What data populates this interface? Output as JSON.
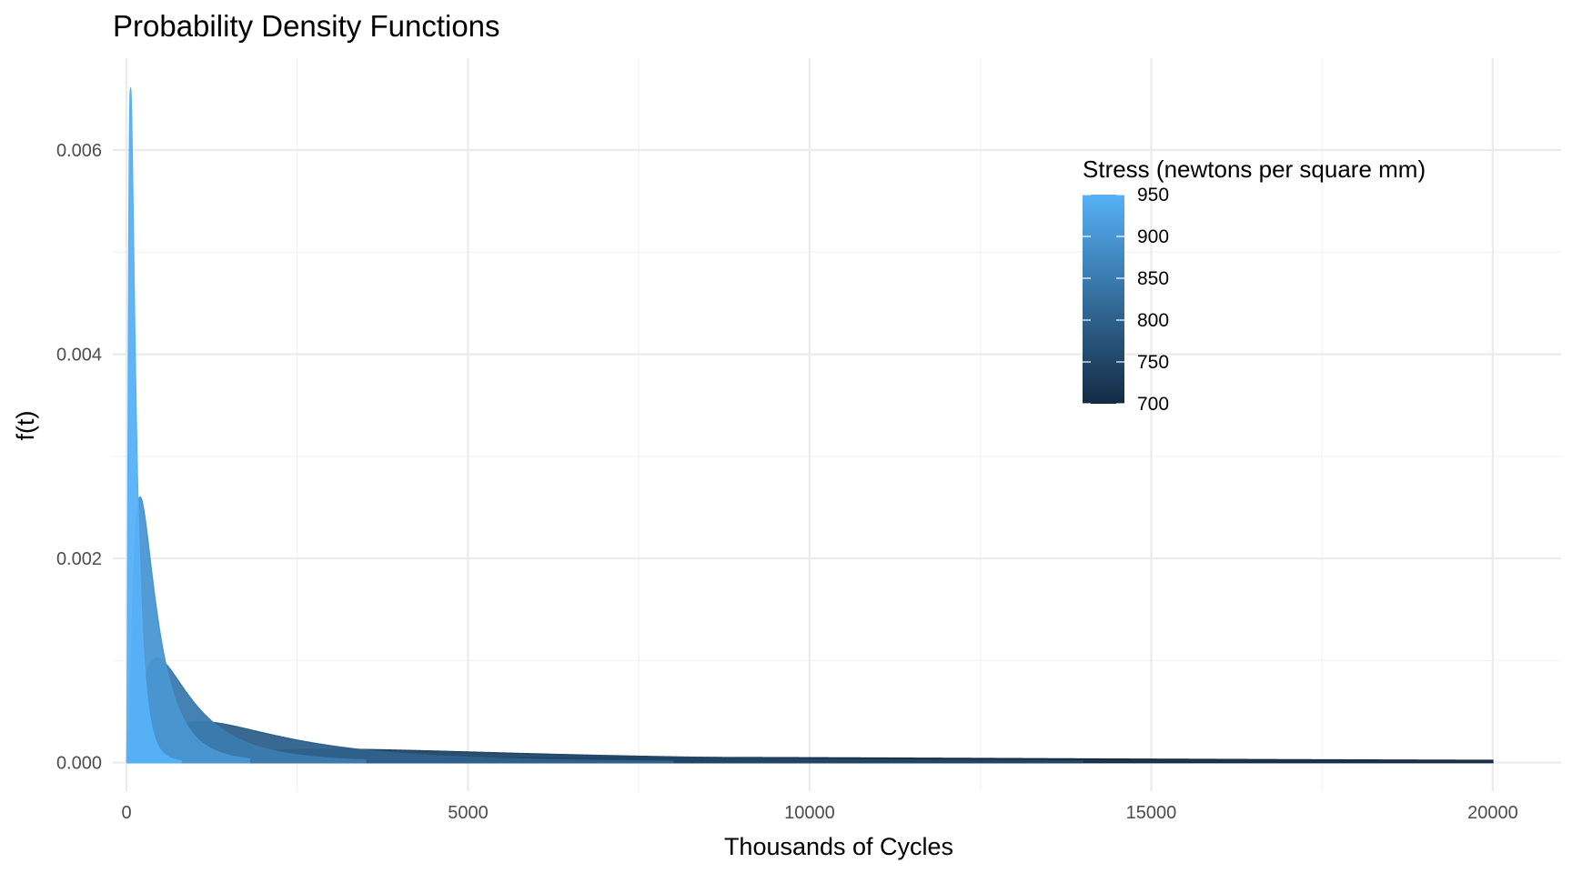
{
  "chart_data": {
    "type": "area",
    "title": "Probability Density Functions",
    "xlabel": "Thousands of Cycles",
    "ylabel": "f(t)",
    "xlim": [
      -200,
      21000
    ],
    "ylim": [
      -0.00028,
      0.0069
    ],
    "x_ticks": [
      0,
      5000,
      10000,
      15000,
      20000
    ],
    "x_tick_labels": [
      "0",
      "5000",
      "10000",
      "15000",
      "20000"
    ],
    "x_minor_ticks": [
      2500,
      7500,
      12500,
      17500
    ],
    "y_ticks": [
      0,
      0.002,
      0.004,
      0.006
    ],
    "y_tick_labels": [
      "0.000",
      "0.002",
      "0.004",
      "0.006"
    ],
    "y_minor_ticks": [
      0.001,
      0.003,
      0.005
    ],
    "grid": true,
    "legend": {
      "title": "Stress (newtons per square mm)",
      "type": "colorbar",
      "position": "top-right",
      "min": 700,
      "max": 950,
      "ticks": [
        950,
        900,
        850,
        800,
        750,
        700
      ],
      "tick_labels": [
        "950",
        "900",
        "850",
        "800",
        "750",
        "700"
      ],
      "color_low": "#132b43",
      "color_high": "#56b1f7"
    },
    "series": [
      {
        "stress": 950,
        "peak_x": 60,
        "peak_y": 0.0066,
        "x_max": 800
      },
      {
        "stress": 900,
        "peak_x": 200,
        "peak_y": 0.0026,
        "x_max": 1800
      },
      {
        "stress": 850,
        "peak_x": 450,
        "peak_y": 0.00102,
        "x_max": 3500
      },
      {
        "stress": 800,
        "peak_x": 1100,
        "peak_y": 0.0004,
        "x_max": 8000
      },
      {
        "stress": 750,
        "peak_x": 3000,
        "peak_y": 0.00013,
        "x_max": 14000
      },
      {
        "stress": 700,
        "peak_x": 7500,
        "peak_y": 5e-05,
        "x_max": 20000
      }
    ]
  }
}
